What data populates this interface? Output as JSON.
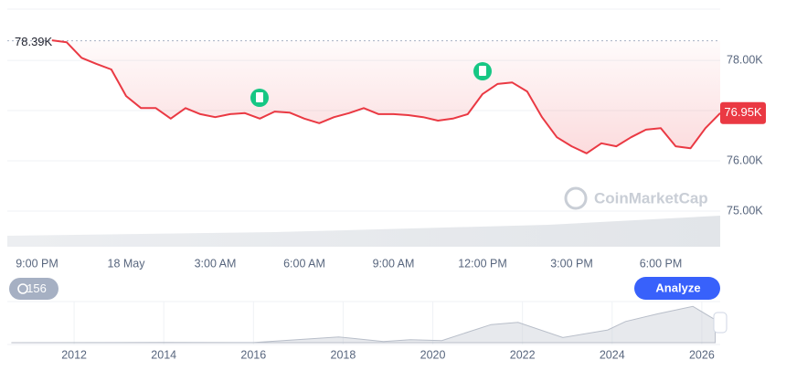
{
  "chart_data": [
    {
      "type": "line",
      "color": "#ea3943",
      "x": [
        0.5,
        1,
        1.5,
        2,
        2.5,
        3,
        3.5,
        4,
        4.5,
        5,
        5.5,
        6,
        6.5,
        7,
        7.5,
        8,
        8.5,
        9,
        9.5,
        10,
        10.5,
        11,
        11.5,
        12,
        12.5,
        13,
        13.5,
        14,
        14.5,
        15,
        15.5,
        16,
        16.5,
        17,
        17.5,
        18,
        18.5,
        19,
        19.5,
        20,
        20.5,
        21,
        21.5,
        22,
        22.5,
        23
      ],
      "values": [
        78.4,
        78.36,
        78.05,
        77.93,
        77.82,
        77.29,
        77.05,
        77.05,
        76.84,
        77.05,
        76.93,
        76.87,
        76.93,
        76.95,
        76.84,
        76.98,
        76.96,
        76.84,
        76.75,
        76.87,
        76.95,
        77.05,
        76.93,
        76.93,
        76.91,
        76.87,
        76.8,
        76.84,
        76.93,
        77.33,
        77.53,
        77.56,
        77.38,
        76.87,
        76.47,
        76.29,
        76.15,
        76.35,
        76.29,
        76.47,
        76.62,
        76.65,
        76.29,
        76.25,
        76.65,
        76.95
      ],
      "xlim": [
        -1,
        23
      ],
      "xticks": [
        {
          "value": 0,
          "label": "9:00 PM"
        },
        {
          "value": 3,
          "label": "18 May"
        },
        {
          "value": 6,
          "label": "3:00 AM"
        },
        {
          "value": 9,
          "label": "6:00 AM"
        },
        {
          "value": 12,
          "label": "9:00 AM"
        },
        {
          "value": 15,
          "label": "12:00 PM"
        },
        {
          "value": 18,
          "label": "3:00 PM"
        },
        {
          "value": 21,
          "label": "6:00 PM"
        }
      ],
      "ylim": [
        74.29,
        79.02
      ],
      "yticks": [
        {
          "value": 75,
          "label": "75.00K"
        },
        {
          "value": 76,
          "label": "76.00K"
        },
        {
          "value": 77,
          "label": "77.00K"
        },
        {
          "value": 78,
          "label": "78.00K"
        }
      ],
      "grid": true,
      "reference_line": {
        "value": 78.39,
        "label": "78.39K"
      },
      "price_badge": {
        "value": 76.95,
        "label": "76.95K"
      },
      "watermark": "CoinMarketCap",
      "history_count": "156",
      "button": "Analyze"
    },
    {
      "type": "area",
      "color": "#c9ced6",
      "x": [
        2010.6,
        2013,
        2014,
        2016,
        2017.9,
        2018.9,
        2019.5,
        2020.2,
        2021.3,
        2021.9,
        2022.9,
        2023.9,
        2024.3,
        2025,
        2025.8,
        2026.3
      ],
      "values": [
        0,
        0.2,
        0.6,
        0.4,
        19,
        4,
        10,
        7,
        60,
        67,
        17,
        42,
        70,
        95,
        120,
        76
      ],
      "xlim": [
        2010.51,
        2026.41
      ],
      "xticks": [
        2012,
        2014,
        2016,
        2018,
        2020,
        2022,
        2024,
        2026
      ],
      "ylim": [
        0,
        130
      ]
    }
  ]
}
